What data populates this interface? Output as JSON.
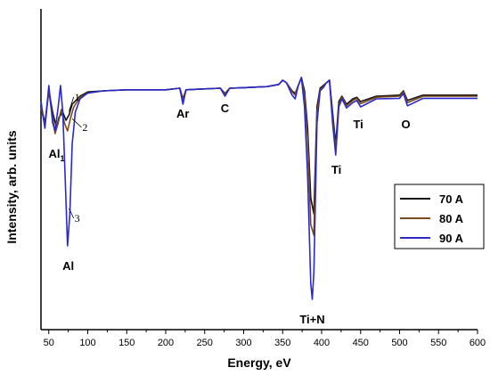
{
  "chart_data": {
    "type": "line",
    "title": "",
    "xlabel": "Energy, eV",
    "ylabel": "Intensity, arb. units",
    "xlim": [
      40,
      600
    ],
    "xticks": [
      "50",
      "100",
      "150",
      "200",
      "250",
      "300",
      "350",
      "400",
      "450",
      "500",
      "550",
      "600"
    ],
    "y_ticks_shown": false,
    "grid": false,
    "legend": {
      "placement": "right"
    },
    "series": [
      {
        "name": "70 A",
        "color": "#111111",
        "x": [
          40,
          45,
          50,
          55,
          60,
          63,
          68,
          72,
          76,
          80,
          90,
          100,
          120,
          150,
          200,
          218,
          222,
          226,
          240,
          270,
          276,
          282,
          300,
          330,
          345,
          350,
          355,
          362,
          366,
          370,
          374,
          378,
          382,
          386,
          390,
          394,
          398,
          402,
          406,
          410,
          414,
          418,
          422,
          426,
          432,
          440,
          445,
          450,
          470,
          500,
          505,
          510,
          530,
          560,
          600
        ],
        "y": [
          0.5,
          0.2,
          0.8,
          0.4,
          0.1,
          0.3,
          0.4,
          0.25,
          0.35,
          0.55,
          0.7,
          0.78,
          0.8,
          0.82,
          0.82,
          0.85,
          0.65,
          0.82,
          0.83,
          0.85,
          0.75,
          0.85,
          0.86,
          0.88,
          0.92,
          1.0,
          0.95,
          0.8,
          0.75,
          0.9,
          1.05,
          0.8,
          0.1,
          -1.2,
          -1.5,
          0.5,
          0.85,
          0.9,
          0.95,
          1.0,
          0.4,
          -0.2,
          0.6,
          0.7,
          0.55,
          0.65,
          0.68,
          0.6,
          0.7,
          0.72,
          0.8,
          0.62,
          0.72,
          0.72,
          0.72
        ]
      },
      {
        "name": "80 A",
        "color": "#7a4a1a",
        "x": [
          40,
          45,
          50,
          55,
          58,
          62,
          66,
          70,
          74,
          78,
          82,
          90,
          100,
          120,
          150,
          200,
          218,
          222,
          226,
          240,
          270,
          276,
          282,
          300,
          330,
          345,
          350,
          355,
          362,
          366,
          370,
          374,
          378,
          382,
          386,
          390,
          394,
          398,
          402,
          406,
          410,
          414,
          418,
          422,
          426,
          432,
          440,
          445,
          450,
          470,
          500,
          505,
          510,
          530,
          560,
          600
        ],
        "y": [
          0.5,
          0.15,
          0.8,
          0.3,
          0.0,
          0.2,
          0.45,
          0.2,
          0.05,
          0.3,
          0.5,
          0.68,
          0.76,
          0.8,
          0.82,
          0.82,
          0.85,
          0.62,
          0.82,
          0.83,
          0.85,
          0.73,
          0.85,
          0.86,
          0.88,
          0.92,
          1.0,
          0.95,
          0.78,
          0.72,
          0.9,
          1.05,
          0.7,
          -0.1,
          -1.7,
          -1.9,
          0.4,
          0.82,
          0.88,
          0.95,
          1.0,
          0.3,
          -0.3,
          0.55,
          0.68,
          0.52,
          0.62,
          0.66,
          0.56,
          0.68,
          0.7,
          0.78,
          0.58,
          0.7,
          0.7,
          0.7
        ]
      },
      {
        "name": "90 A",
        "color": "#2a2acc",
        "x": [
          40,
          45,
          50,
          55,
          58,
          62,
          65,
          68,
          71,
          74,
          77,
          80,
          84,
          90,
          100,
          120,
          150,
          200,
          218,
          222,
          226,
          240,
          270,
          276,
          282,
          300,
          330,
          345,
          350,
          355,
          362,
          366,
          370,
          374,
          378,
          382,
          386,
          388,
          390,
          394,
          398,
          402,
          406,
          410,
          414,
          418,
          422,
          426,
          432,
          440,
          445,
          450,
          470,
          500,
          505,
          510,
          530,
          560,
          600
        ],
        "y": [
          0.6,
          0.1,
          0.9,
          0.2,
          0.05,
          0.5,
          0.9,
          0.4,
          -0.8,
          -2.1,
          -1.5,
          -0.2,
          0.4,
          0.65,
          0.76,
          0.8,
          0.82,
          0.82,
          0.85,
          0.55,
          0.82,
          0.83,
          0.85,
          0.7,
          0.85,
          0.86,
          0.88,
          0.92,
          1.0,
          0.95,
          0.72,
          0.65,
          0.9,
          1.05,
          0.5,
          -0.8,
          -2.8,
          -3.1,
          -2.6,
          0.2,
          0.8,
          0.86,
          0.95,
          1.0,
          0.2,
          -0.4,
          0.5,
          0.65,
          0.48,
          0.58,
          0.62,
          0.5,
          0.65,
          0.66,
          0.75,
          0.52,
          0.66,
          0.66,
          0.66
        ]
      }
    ],
    "annotations": [
      {
        "text": "Al",
        "sub": "1",
        "x": 60,
        "y": -0.45
      },
      {
        "text": "Al",
        "sub": "",
        "x": 75,
        "y": -2.55
      },
      {
        "text": "Ar",
        "x": 222,
        "y": 0.3
      },
      {
        "text": "C",
        "x": 276,
        "y": 0.4
      },
      {
        "text": "Ti+N",
        "x": 388,
        "y": -3.55
      },
      {
        "text": "Ti",
        "x": 419,
        "y": -0.75
      },
      {
        "text": "Ti",
        "x": 447,
        "y": 0.1
      },
      {
        "text": "O",
        "x": 508,
        "y": 0.1
      }
    ],
    "curve_markers": [
      {
        "text": "1",
        "x": 83,
        "y": 0.62
      },
      {
        "text": "2",
        "x": 93,
        "y": 0.05
      },
      {
        "text": "3",
        "x": 83,
        "y": -1.65
      }
    ]
  }
}
